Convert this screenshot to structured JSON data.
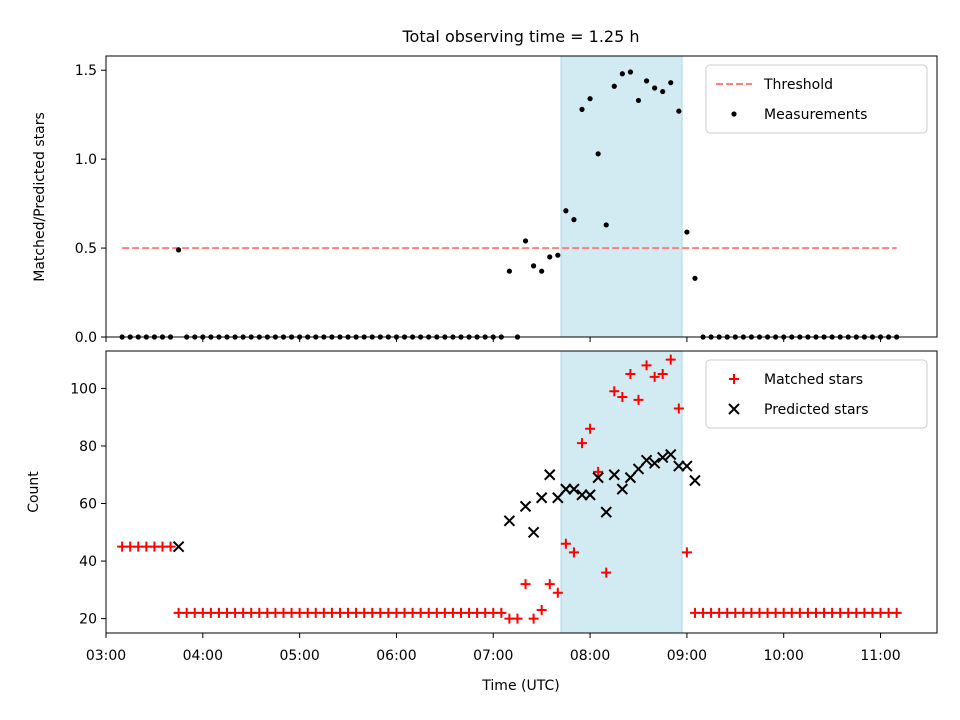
{
  "figure": {
    "title": "Total observing time = 1.25 h"
  },
  "chart_data": [
    {
      "type": "scatter",
      "ylabel": "Matched/Predicted stars",
      "xlabel": "",
      "xlim": [
        "03:00",
        "11:35"
      ],
      "ylim": [
        0,
        1.58
      ],
      "yticks": [
        0.0,
        0.5,
        1.0,
        1.5
      ],
      "ytick_labels": [
        "0.0",
        "0.5",
        "1.0",
        "1.5"
      ],
      "shaded_span": {
        "start": "07:42",
        "end": "08:57",
        "color": "#add8e6"
      },
      "legend": {
        "placement": "top-right",
        "entries": [
          {
            "label": "Threshold",
            "marker": "dashed-line",
            "color": "#ff7f7f"
          },
          {
            "label": "Measurements",
            "marker": "dot",
            "color": "#000000"
          }
        ]
      },
      "series": [
        {
          "name": "Threshold",
          "kind": "dashed-line",
          "color": "#ff7f7f",
          "x": [
            "03:10",
            "11:10"
          ],
          "y": [
            0.5,
            0.5
          ]
        },
        {
          "name": "Measurements",
          "kind": "dots",
          "color": "#000000",
          "points": [
            [
              "03:10",
              0
            ],
            [
              "03:15",
              0
            ],
            [
              "03:20",
              0
            ],
            [
              "03:25",
              0
            ],
            [
              "03:30",
              0
            ],
            [
              "03:35",
              0
            ],
            [
              "03:40",
              0
            ],
            [
              "03:45",
              0.49
            ],
            [
              "03:50",
              0
            ],
            [
              "03:55",
              0
            ],
            [
              "04:00",
              0
            ],
            [
              "04:05",
              0
            ],
            [
              "04:10",
              0
            ],
            [
              "04:15",
              0
            ],
            [
              "04:20",
              0
            ],
            [
              "04:25",
              0
            ],
            [
              "04:30",
              0
            ],
            [
              "04:35",
              0
            ],
            [
              "04:40",
              0
            ],
            [
              "04:45",
              0
            ],
            [
              "04:50",
              0
            ],
            [
              "04:55",
              0
            ],
            [
              "05:00",
              0
            ],
            [
              "05:05",
              0
            ],
            [
              "05:10",
              0
            ],
            [
              "05:15",
              0
            ],
            [
              "05:20",
              0
            ],
            [
              "05:25",
              0
            ],
            [
              "05:30",
              0
            ],
            [
              "05:35",
              0
            ],
            [
              "05:40",
              0
            ],
            [
              "05:45",
              0
            ],
            [
              "05:50",
              0
            ],
            [
              "05:55",
              0
            ],
            [
              "06:00",
              0
            ],
            [
              "06:05",
              0
            ],
            [
              "06:10",
              0
            ],
            [
              "06:15",
              0
            ],
            [
              "06:20",
              0
            ],
            [
              "06:25",
              0
            ],
            [
              "06:30",
              0
            ],
            [
              "06:35",
              0
            ],
            [
              "06:40",
              0
            ],
            [
              "06:45",
              0
            ],
            [
              "06:50",
              0
            ],
            [
              "06:55",
              0
            ],
            [
              "07:00",
              0
            ],
            [
              "07:05",
              0
            ],
            [
              "07:10",
              0.37
            ],
            [
              "07:15",
              0
            ],
            [
              "07:20",
              0.54
            ],
            [
              "07:25",
              0.4
            ],
            [
              "07:30",
              0.37
            ],
            [
              "07:35",
              0.45
            ],
            [
              "07:40",
              0.46
            ],
            [
              "07:45",
              0.71
            ],
            [
              "07:50",
              0.66
            ],
            [
              "07:55",
              1.28
            ],
            [
              "08:00",
              1.34
            ],
            [
              "08:05",
              1.03
            ],
            [
              "08:10",
              0.63
            ],
            [
              "08:15",
              1.41
            ],
            [
              "08:20",
              1.48
            ],
            [
              "08:25",
              1.49
            ],
            [
              "08:30",
              1.33
            ],
            [
              "08:35",
              1.44
            ],
            [
              "08:40",
              1.4
            ],
            [
              "08:45",
              1.38
            ],
            [
              "08:50",
              1.43
            ],
            [
              "08:55",
              1.27
            ],
            [
              "09:00",
              0.59
            ],
            [
              "09:05",
              0.33
            ],
            [
              "09:10",
              0
            ],
            [
              "09:15",
              0
            ],
            [
              "09:20",
              0
            ],
            [
              "09:25",
              0
            ],
            [
              "09:30",
              0
            ],
            [
              "09:35",
              0
            ],
            [
              "09:40",
              0
            ],
            [
              "09:45",
              0
            ],
            [
              "09:50",
              0
            ],
            [
              "09:55",
              0
            ],
            [
              "10:00",
              0
            ],
            [
              "10:05",
              0
            ],
            [
              "10:10",
              0
            ],
            [
              "10:15",
              0
            ],
            [
              "10:20",
              0
            ],
            [
              "10:25",
              0
            ],
            [
              "10:30",
              0
            ],
            [
              "10:35",
              0
            ],
            [
              "10:40",
              0
            ],
            [
              "10:45",
              0
            ],
            [
              "10:50",
              0
            ],
            [
              "10:55",
              0
            ],
            [
              "11:00",
              0
            ],
            [
              "11:05",
              0
            ],
            [
              "11:10",
              0
            ]
          ]
        }
      ]
    },
    {
      "type": "scatter",
      "ylabel": "Count",
      "xlabel": "Time (UTC)",
      "xlim": [
        "03:00",
        "11:35"
      ],
      "ylim": [
        15,
        113
      ],
      "yticks": [
        20,
        40,
        60,
        80,
        100
      ],
      "ytick_labels": [
        "20",
        "40",
        "60",
        "80",
        "100"
      ],
      "xtick_labels": [
        "03:00",
        "04:00",
        "05:00",
        "06:00",
        "07:00",
        "08:00",
        "09:00",
        "10:00",
        "11:00"
      ],
      "shaded_span": {
        "start": "07:42",
        "end": "08:57",
        "color": "#add8e6"
      },
      "legend": {
        "placement": "top-right",
        "entries": [
          {
            "label": "Matched stars",
            "marker": "plus",
            "color": "#ff0000"
          },
          {
            "label": "Predicted stars",
            "marker": "cross",
            "color": "#000000"
          }
        ]
      },
      "series": [
        {
          "name": "Matched stars",
          "kind": "plus",
          "color": "#ff0000",
          "points": [
            [
              "03:10",
              45
            ],
            [
              "03:15",
              45
            ],
            [
              "03:20",
              45
            ],
            [
              "03:25",
              45
            ],
            [
              "03:30",
              45
            ],
            [
              "03:35",
              45
            ],
            [
              "03:40",
              45
            ],
            [
              "03:45",
              22
            ],
            [
              "03:50",
              22
            ],
            [
              "03:55",
              22
            ],
            [
              "04:00",
              22
            ],
            [
              "04:05",
              22
            ],
            [
              "04:10",
              22
            ],
            [
              "04:15",
              22
            ],
            [
              "04:20",
              22
            ],
            [
              "04:25",
              22
            ],
            [
              "04:30",
              22
            ],
            [
              "04:35",
              22
            ],
            [
              "04:40",
              22
            ],
            [
              "04:45",
              22
            ],
            [
              "04:50",
              22
            ],
            [
              "04:55",
              22
            ],
            [
              "05:00",
              22
            ],
            [
              "05:05",
              22
            ],
            [
              "05:10",
              22
            ],
            [
              "05:15",
              22
            ],
            [
              "05:20",
              22
            ],
            [
              "05:25",
              22
            ],
            [
              "05:30",
              22
            ],
            [
              "05:35",
              22
            ],
            [
              "05:40",
              22
            ],
            [
              "05:45",
              22
            ],
            [
              "05:50",
              22
            ],
            [
              "05:55",
              22
            ],
            [
              "06:00",
              22
            ],
            [
              "06:05",
              22
            ],
            [
              "06:10",
              22
            ],
            [
              "06:15",
              22
            ],
            [
              "06:20",
              22
            ],
            [
              "06:25",
              22
            ],
            [
              "06:30",
              22
            ],
            [
              "06:35",
              22
            ],
            [
              "06:40",
              22
            ],
            [
              "06:45",
              22
            ],
            [
              "06:50",
              22
            ],
            [
              "06:55",
              22
            ],
            [
              "07:00",
              22
            ],
            [
              "07:05",
              22
            ],
            [
              "07:10",
              20
            ],
            [
              "07:15",
              20
            ],
            [
              "07:20",
              32
            ],
            [
              "07:25",
              20
            ],
            [
              "07:30",
              23
            ],
            [
              "07:35",
              32
            ],
            [
              "07:40",
              29
            ],
            [
              "07:45",
              46
            ],
            [
              "07:50",
              43
            ],
            [
              "07:55",
              81
            ],
            [
              "08:00",
              86
            ],
            [
              "08:05",
              71
            ],
            [
              "08:10",
              36
            ],
            [
              "08:15",
              99
            ],
            [
              "08:20",
              97
            ],
            [
              "08:25",
              105
            ],
            [
              "08:30",
              96
            ],
            [
              "08:35",
              108
            ],
            [
              "08:40",
              104
            ],
            [
              "08:45",
              105
            ],
            [
              "08:50",
              110
            ],
            [
              "08:55",
              93
            ],
            [
              "09:00",
              43
            ],
            [
              "09:05",
              22
            ],
            [
              "09:10",
              22
            ],
            [
              "09:15",
              22
            ],
            [
              "09:20",
              22
            ],
            [
              "09:25",
              22
            ],
            [
              "09:30",
              22
            ],
            [
              "09:35",
              22
            ],
            [
              "09:40",
              22
            ],
            [
              "09:45",
              22
            ],
            [
              "09:50",
              22
            ],
            [
              "09:55",
              22
            ],
            [
              "10:00",
              22
            ],
            [
              "10:05",
              22
            ],
            [
              "10:10",
              22
            ],
            [
              "10:15",
              22
            ],
            [
              "10:20",
              22
            ],
            [
              "10:25",
              22
            ],
            [
              "10:30",
              22
            ],
            [
              "10:35",
              22
            ],
            [
              "10:40",
              22
            ],
            [
              "10:45",
              22
            ],
            [
              "10:50",
              22
            ],
            [
              "10:55",
              22
            ],
            [
              "11:00",
              22
            ],
            [
              "11:05",
              22
            ],
            [
              "11:10",
              22
            ]
          ]
        },
        {
          "name": "Predicted stars",
          "kind": "cross",
          "color": "#000000",
          "points": [
            [
              "03:45",
              45
            ],
            [
              "07:10",
              54
            ],
            [
              "07:20",
              59
            ],
            [
              "07:25",
              50
            ],
            [
              "07:30",
              62
            ],
            [
              "07:35",
              70
            ],
            [
              "07:40",
              62
            ],
            [
              "07:45",
              65
            ],
            [
              "07:50",
              65
            ],
            [
              "07:55",
              63
            ],
            [
              "08:00",
              63
            ],
            [
              "08:05",
              69
            ],
            [
              "08:10",
              57
            ],
            [
              "08:15",
              70
            ],
            [
              "08:20",
              65
            ],
            [
              "08:25",
              69
            ],
            [
              "08:30",
              72
            ],
            [
              "08:35",
              75
            ],
            [
              "08:40",
              74
            ],
            [
              "08:45",
              76
            ],
            [
              "08:50",
              77
            ],
            [
              "08:55",
              73
            ],
            [
              "09:00",
              73
            ],
            [
              "09:05",
              68
            ]
          ]
        }
      ]
    }
  ]
}
